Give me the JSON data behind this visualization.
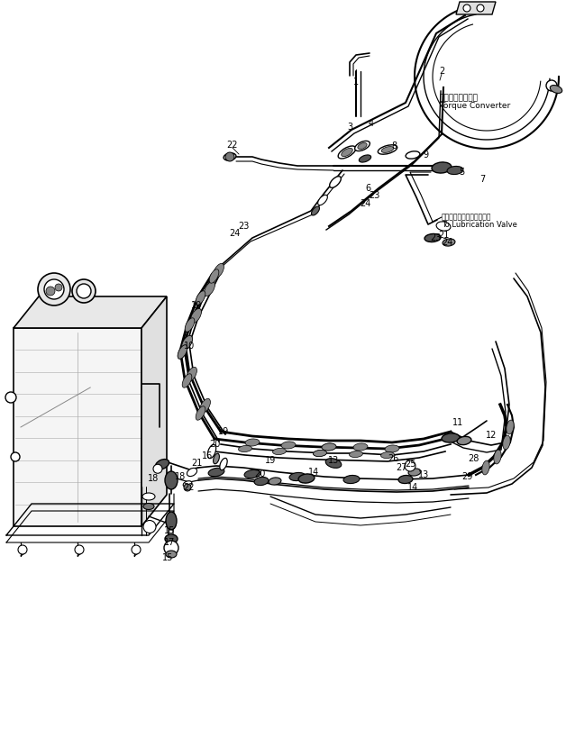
{
  "bg_color": "#ffffff",
  "line_color": "#000000",
  "ann_tc_jp": "トルクコンバータ",
  "ann_tc_en": "Torque Converter",
  "ann_lub_jp": "ルブリケーションバルブへ",
  "ann_lub_en": "To Lubrication Valve"
}
